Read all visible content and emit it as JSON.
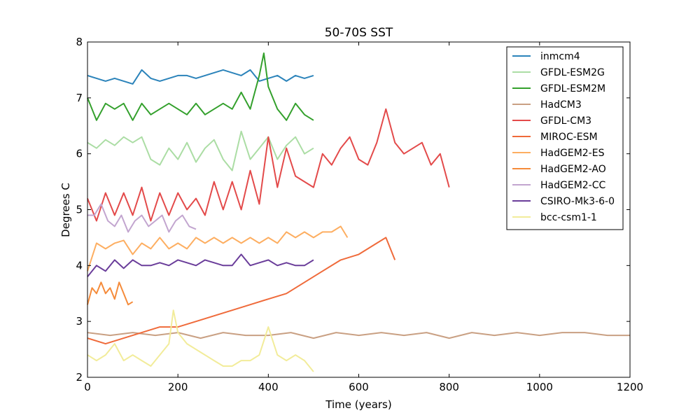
{
  "chart_data": {
    "type": "line",
    "title": "50-70S SST",
    "xlabel": "Time (years)",
    "ylabel": "Degrees C",
    "xlim": [
      0,
      1200
    ],
    "ylim": [
      2,
      8
    ],
    "xticks": [
      0,
      200,
      400,
      600,
      800,
      1000,
      1200
    ],
    "yticks": [
      2,
      3,
      4,
      5,
      6,
      7,
      8
    ],
    "grid": false,
    "legend_position": "top-right",
    "series": [
      {
        "name": "inmcm4",
        "color": "#2b83ba",
        "x": [
          0,
          20,
          40,
          60,
          80,
          100,
          120,
          140,
          160,
          180,
          200,
          220,
          240,
          260,
          280,
          300,
          320,
          340,
          360,
          380,
          400,
          420,
          440,
          460,
          480,
          500
        ],
        "values": [
          7.4,
          7.35,
          7.3,
          7.35,
          7.3,
          7.25,
          7.5,
          7.35,
          7.3,
          7.35,
          7.4,
          7.4,
          7.35,
          7.4,
          7.45,
          7.5,
          7.45,
          7.4,
          7.5,
          7.3,
          7.35,
          7.4,
          7.3,
          7.4,
          7.35,
          7.4
        ]
      },
      {
        "name": "GFDL-ESM2G",
        "color": "#abdda4",
        "x": [
          0,
          20,
          40,
          60,
          80,
          100,
          120,
          140,
          160,
          180,
          200,
          220,
          240,
          260,
          280,
          300,
          320,
          340,
          360,
          380,
          400,
          420,
          440,
          460,
          480,
          500
        ],
        "values": [
          6.2,
          6.1,
          6.25,
          6.15,
          6.3,
          6.2,
          6.3,
          5.9,
          5.8,
          6.1,
          5.9,
          6.2,
          5.85,
          6.1,
          6.25,
          5.9,
          5.7,
          6.4,
          5.9,
          6.1,
          6.3,
          5.9,
          6.15,
          6.3,
          6.0,
          6.1
        ]
      },
      {
        "name": "GFDL-ESM2M",
        "color": "#33a02c",
        "x": [
          0,
          20,
          40,
          60,
          80,
          100,
          120,
          140,
          160,
          180,
          200,
          220,
          240,
          260,
          280,
          300,
          320,
          340,
          360,
          380,
          390,
          400,
          420,
          440,
          460,
          480,
          500
        ],
        "values": [
          7.0,
          6.6,
          6.9,
          6.8,
          6.9,
          6.6,
          6.9,
          6.7,
          6.8,
          6.9,
          6.8,
          6.7,
          6.9,
          6.7,
          6.8,
          6.9,
          6.8,
          7.1,
          6.8,
          7.4,
          7.8,
          7.2,
          6.8,
          6.6,
          6.9,
          6.7,
          6.6
        ]
      },
      {
        "name": "HadCM3",
        "color": "#c9a083",
        "x": [
          0,
          50,
          100,
          150,
          200,
          250,
          300,
          350,
          400,
          450,
          500,
          550,
          600,
          650,
          700,
          750,
          800,
          850,
          900,
          950,
          1000,
          1050,
          1100,
          1150,
          1200
        ],
        "values": [
          2.8,
          2.75,
          2.8,
          2.75,
          2.8,
          2.7,
          2.8,
          2.75,
          2.75,
          2.8,
          2.7,
          2.8,
          2.75,
          2.8,
          2.75,
          2.8,
          2.7,
          2.8,
          2.75,
          2.8,
          2.75,
          2.8,
          2.8,
          2.75,
          2.75
        ]
      },
      {
        "name": "GFDL-CM3",
        "color": "#e34a4a",
        "x": [
          0,
          20,
          40,
          60,
          80,
          100,
          120,
          140,
          160,
          180,
          200,
          220,
          240,
          260,
          280,
          300,
          320,
          340,
          360,
          380,
          400,
          420,
          440,
          460,
          480,
          500,
          520,
          540,
          560,
          580,
          600,
          620,
          640,
          660,
          680,
          700,
          720,
          740,
          760,
          780,
          800
        ],
        "values": [
          5.2,
          4.8,
          5.3,
          4.9,
          5.3,
          4.9,
          5.4,
          4.8,
          5.3,
          4.9,
          5.3,
          5.0,
          5.2,
          4.9,
          5.5,
          5.0,
          5.5,
          5.0,
          5.7,
          5.1,
          6.3,
          5.4,
          6.1,
          5.6,
          5.5,
          5.4,
          6.0,
          5.8,
          6.1,
          6.3,
          5.9,
          5.8,
          6.2,
          6.8,
          6.2,
          6.0,
          6.1,
          6.2,
          5.8,
          6.0,
          5.4
        ]
      },
      {
        "name": "MIROC-ESM",
        "color": "#ef6a3a",
        "x": [
          0,
          40,
          80,
          120,
          160,
          200,
          240,
          280,
          320,
          360,
          400,
          440,
          480,
          520,
          560,
          600,
          640,
          660,
          680
        ],
        "values": [
          2.7,
          2.6,
          2.7,
          2.8,
          2.9,
          2.9,
          3.0,
          3.1,
          3.2,
          3.3,
          3.4,
          3.5,
          3.7,
          3.9,
          4.1,
          4.2,
          4.4,
          4.5,
          4.1
        ]
      },
      {
        "name": "HadGEM2-ES",
        "color": "#fdae61",
        "x": [
          0,
          20,
          40,
          60,
          80,
          100,
          120,
          140,
          160,
          180,
          200,
          220,
          240,
          260,
          280,
          300,
          320,
          340,
          360,
          380,
          400,
          420,
          440,
          460,
          480,
          500,
          520,
          540,
          560,
          575
        ],
        "values": [
          3.9,
          4.4,
          4.3,
          4.4,
          4.45,
          4.2,
          4.4,
          4.3,
          4.5,
          4.3,
          4.4,
          4.3,
          4.5,
          4.4,
          4.5,
          4.4,
          4.5,
          4.4,
          4.5,
          4.4,
          4.5,
          4.4,
          4.6,
          4.5,
          4.6,
          4.5,
          4.6,
          4.6,
          4.7,
          4.5
        ]
      },
      {
        "name": "HadGEM2-AO",
        "color": "#f58b3a",
        "x": [
          0,
          10,
          20,
          30,
          40,
          50,
          60,
          70,
          80,
          90,
          100
        ],
        "values": [
          3.3,
          3.6,
          3.5,
          3.7,
          3.5,
          3.6,
          3.4,
          3.7,
          3.5,
          3.3,
          3.35
        ]
      },
      {
        "name": "HadGEM2-CC",
        "color": "#c2a5cf",
        "x": [
          0,
          15,
          30,
          45,
          60,
          75,
          90,
          105,
          120,
          135,
          150,
          165,
          180,
          195,
          210,
          225,
          240
        ],
        "values": [
          4.9,
          4.9,
          5.1,
          4.8,
          4.7,
          4.9,
          4.6,
          4.8,
          4.9,
          4.7,
          4.8,
          4.9,
          4.6,
          4.8,
          4.9,
          4.7,
          4.65
        ]
      },
      {
        "name": "CSIRO-Mk3-6-0",
        "color": "#6a3d9a",
        "x": [
          0,
          20,
          40,
          60,
          80,
          100,
          120,
          140,
          160,
          180,
          200,
          220,
          240,
          260,
          280,
          300,
          320,
          340,
          360,
          380,
          400,
          420,
          440,
          460,
          480,
          500
        ],
        "values": [
          3.8,
          4.0,
          3.9,
          4.1,
          3.95,
          4.1,
          4.0,
          4.0,
          4.05,
          4.0,
          4.1,
          4.05,
          4.0,
          4.1,
          4.05,
          4.0,
          4.0,
          4.2,
          4.0,
          4.05,
          4.1,
          4.0,
          4.05,
          4.0,
          4.0,
          4.1
        ]
      },
      {
        "name": "bcc-csm1-1",
        "color": "#f2ec9a",
        "x": [
          0,
          20,
          40,
          60,
          80,
          100,
          120,
          140,
          160,
          180,
          190,
          200,
          220,
          240,
          260,
          280,
          300,
          320,
          340,
          360,
          380,
          400,
          420,
          440,
          460,
          480,
          500
        ],
        "values": [
          2.4,
          2.3,
          2.4,
          2.6,
          2.3,
          2.4,
          2.3,
          2.2,
          2.4,
          2.6,
          3.2,
          2.8,
          2.6,
          2.5,
          2.4,
          2.3,
          2.2,
          2.2,
          2.3,
          2.3,
          2.4,
          2.9,
          2.4,
          2.3,
          2.4,
          2.3,
          2.1
        ]
      }
    ]
  }
}
